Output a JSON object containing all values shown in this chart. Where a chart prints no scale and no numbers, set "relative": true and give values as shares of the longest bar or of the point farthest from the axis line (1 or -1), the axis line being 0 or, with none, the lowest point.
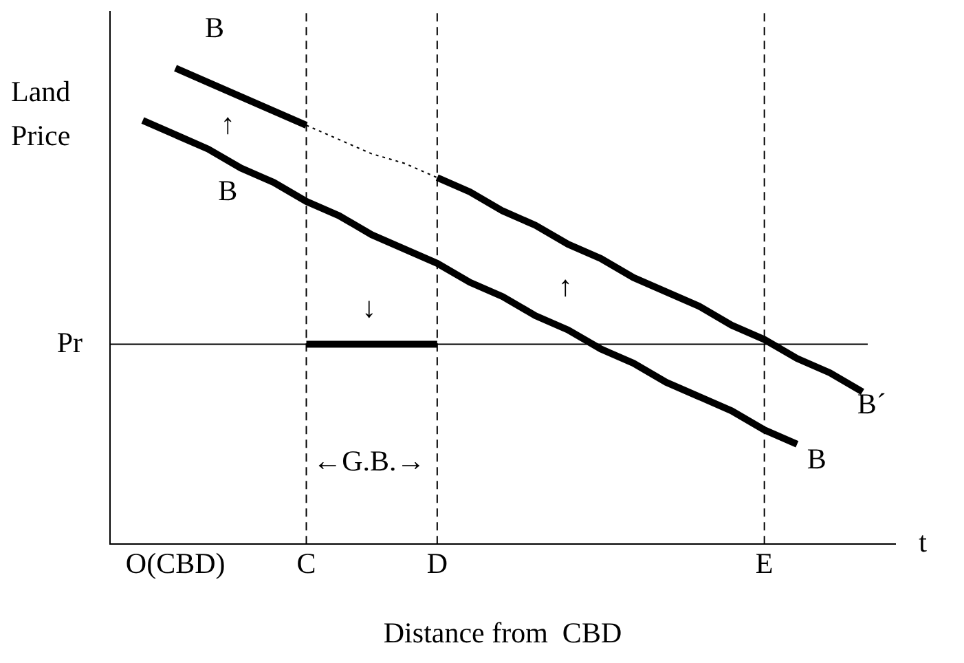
{
  "chart_data": {
    "type": "line",
    "relative": true,
    "xlabel": "Distance from  CBD",
    "ylabel": "Land Price",
    "grid": false,
    "legend": false,
    "marker": "none",
    "categories": [
      null,
      null,
      "O(CBD)",
      null,
      null,
      null,
      "C",
      null,
      null,
      null,
      "D",
      null,
      null,
      null,
      null,
      null,
      null,
      null,
      null,
      null,
      "E",
      null,
      null,
      null,
      null
    ],
    "series": [
      {
        "color": "#000000",
        "line_style": "solid",
        "values": [
          null,
          0.89,
          0.86,
          0.83,
          0.79,
          0.76,
          0.72,
          0.69,
          0.65,
          0.62,
          0.59,
          0.55,
          0.52,
          0.48,
          0.45,
          0.41,
          0.38,
          0.34,
          0.31,
          0.28,
          0.24,
          0.21,
          null,
          null,
          null
        ]
      },
      {
        "color": "#000000",
        "line_style": "solid",
        "values": [
          null,
          null,
          1.0,
          0.97,
          0.94,
          0.91,
          0.88,
          null,
          null,
          null,
          null,
          null,
          null,
          null,
          null,
          null,
          null,
          null,
          null,
          null,
          null,
          null,
          null,
          null,
          null
        ]
      },
      {
        "color": "#000000",
        "line_style": "dotted",
        "values": [
          null,
          null,
          null,
          null,
          null,
          null,
          0.88,
          0.85,
          0.82,
          0.8,
          0.77,
          null,
          null,
          null,
          null,
          null,
          null,
          null,
          null,
          null,
          null,
          null,
          null,
          null,
          null
        ]
      },
      {
        "color": "#000000",
        "line_style": "solid",
        "values": [
          null,
          null,
          null,
          null,
          null,
          null,
          null,
          null,
          null,
          null,
          0.77,
          0.74,
          0.7,
          0.67,
          0.63,
          0.6,
          0.56,
          0.53,
          0.5,
          0.46,
          0.43,
          0.39,
          0.36,
          0.32,
          null
        ]
      },
      {
        "color": "#000000",
        "line_style": "solid",
        "values": [
          null,
          null,
          null,
          null,
          null,
          null,
          0.42,
          0.42,
          0.42,
          0.42,
          0.42,
          null,
          null,
          null,
          null,
          null,
          null,
          null,
          null,
          null,
          null,
          null,
          null,
          null,
          null
        ]
      }
    ],
    "ref_lines": [
      {
        "axis": "y",
        "value": 0.42,
        "label": "Pr",
        "color": "#000000"
      },
      {
        "axis": "x",
        "value": "C",
        "color": "#000000",
        "line_style": "dashed"
      },
      {
        "axis": "x",
        "value": "D",
        "color": "#000000",
        "line_style": "dashed"
      },
      {
        "axis": "x",
        "value": "E",
        "color": "#000000",
        "line_style": "dashed"
      }
    ],
    "annotations": [
      "B",
      "B",
      "B",
      "B´",
      "↑",
      "↑",
      "↓",
      "←G.B.→",
      "t"
    ]
  }
}
